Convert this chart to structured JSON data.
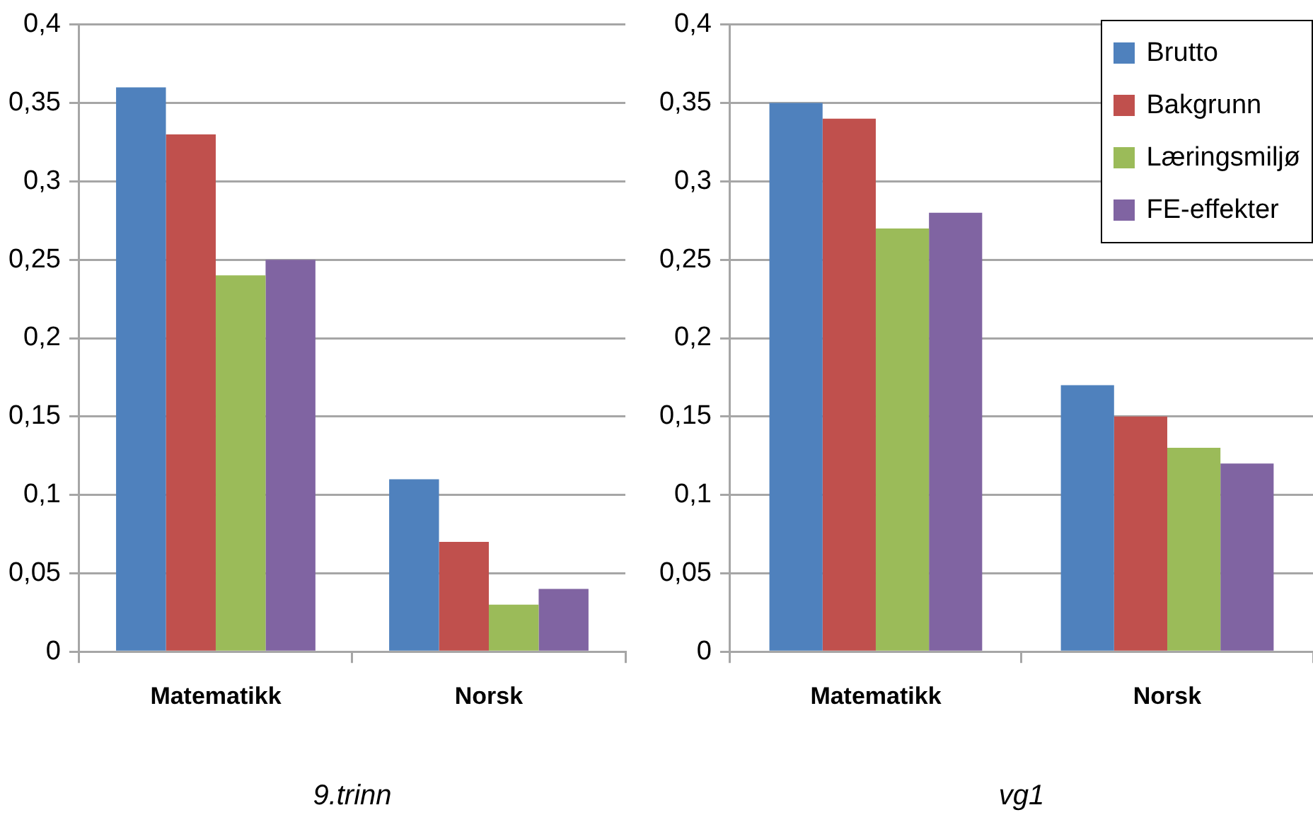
{
  "chart_data": [
    {
      "type": "bar",
      "xlabel": "9.trinn",
      "categories": [
        "Matematikk",
        "Norsk"
      ],
      "series": [
        {
          "color": "#4f81bd",
          "values": [
            0.36,
            0.11
          ]
        },
        {
          "color": "#c0504d",
          "values": [
            0.33,
            0.07
          ]
        },
        {
          "color": "#9bbb59",
          "values": [
            0.24,
            0.03
          ]
        },
        {
          "color": "#8064a2",
          "values": [
            0.25,
            0.04
          ]
        }
      ],
      "ylim": [
        0,
        0.4
      ],
      "yticks": [
        0,
        {
          "value": 0.05,
          "label": "0,05"
        },
        {
          "value": 0.1,
          "label": "0,1"
        },
        {
          "value": 0.15,
          "label": "0,15"
        },
        {
          "value": 0.2,
          "label": "0,2"
        },
        {
          "value": 0.25,
          "label": "0,25"
        },
        {
          "value": 0.3,
          "label": "0,3"
        },
        {
          "value": 0.35,
          "label": "0,35"
        },
        {
          "value": 0.4,
          "label": "0,4"
        }
      ],
      "grid": "y",
      "legend": false
    },
    {
      "type": "bar",
      "xlabel": "vg1",
      "categories": [
        "Matematikk",
        "Norsk"
      ],
      "series": [
        {
          "name": "Brutto",
          "color": "#4f81bd",
          "values": [
            0.35,
            0.17
          ]
        },
        {
          "name": "Bakgrunn",
          "color": "#c0504d",
          "values": [
            0.34,
            0.15
          ]
        },
        {
          "name": "Læringsmiljø",
          "color": "#9bbb59",
          "values": [
            0.27,
            0.13
          ]
        },
        {
          "name": "FE-effekter",
          "color": "#8064a2",
          "values": [
            0.28,
            0.12
          ]
        }
      ],
      "ylim": [
        0,
        0.4
      ],
      "yticks": [
        0,
        {
          "value": 0.05,
          "label": "0,05"
        },
        {
          "value": 0.1,
          "label": "0,1"
        },
        {
          "value": 0.15,
          "label": "0,15"
        },
        {
          "value": 0.2,
          "label": "0,2"
        },
        {
          "value": 0.25,
          "label": "0,25"
        },
        {
          "value": 0.3,
          "label": "0,3"
        },
        {
          "value": 0.35,
          "label": "0,35"
        },
        {
          "value": 0.4,
          "label": "0,4"
        }
      ],
      "grid": "y",
      "legend": "top right"
    }
  ]
}
